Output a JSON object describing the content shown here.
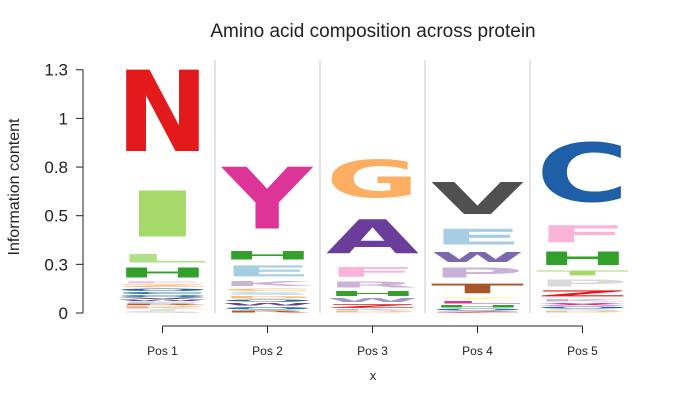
{
  "chart_data": {
    "type": "sequence-logo",
    "title": "Amino acid composition across protein",
    "xlabel": "x",
    "ylabel": "Information content",
    "ylim": [
      0,
      1.3
    ],
    "y_ticks": [
      {
        "value": 0,
        "label": "0"
      },
      {
        "value": 0.25,
        "label": "0.3"
      },
      {
        "value": 0.5,
        "label": "0.5"
      },
      {
        "value": 0.75,
        "label": "0.8"
      },
      {
        "value": 1,
        "label": "1"
      },
      {
        "value": 1.25,
        "label": "1.3"
      }
    ],
    "positions": [
      {
        "label": "Pos 1",
        "letters": [
          {
            "char": "S",
            "height": 0.01,
            "color": "#c9b2d6"
          },
          {
            "char": "T",
            "height": 0.01,
            "color": "#b2df8a"
          },
          {
            "char": "K",
            "height": 0.01,
            "color": "#cab2d6"
          },
          {
            "char": "D",
            "height": 0.01,
            "color": "#fdbf6f"
          },
          {
            "char": "R",
            "height": 0.01,
            "color": "#b15928"
          },
          {
            "char": "E",
            "height": 0.01,
            "color": "#a6cee3"
          },
          {
            "char": "W",
            "height": 0.01,
            "color": "#6a3d9a"
          },
          {
            "char": "V",
            "height": 0.01,
            "color": "#555555"
          },
          {
            "char": "Q",
            "height": 0.015,
            "color": "#1f78b4"
          },
          {
            "char": "C",
            "height": 0.015,
            "color": "#1f5fa8"
          },
          {
            "char": "O",
            "height": 0.02,
            "color": "#2166ac"
          },
          {
            "char": "Z",
            "height": 0.02,
            "color": "#fdae61"
          },
          {
            "char": "F",
            "height": 0.015,
            "color": "#fbb4d9"
          },
          {
            "char": "H",
            "height": 0.08,
            "color": "#33a02c"
          },
          {
            "char": "L",
            "height": 0.07,
            "color": "#b2df8a"
          },
          {
            "char": "I",
            "height": 0.38,
            "color": "#a6d96a"
          },
          {
            "char": "N",
            "height": 0.67,
            "color": "#e31a1c"
          }
        ]
      },
      {
        "label": "Pos 2",
        "letters": [
          {
            "char": "R",
            "height": 0.015,
            "color": "#b15928"
          },
          {
            "char": "O",
            "height": 0.02,
            "color": "#1f78b4"
          },
          {
            "char": "W",
            "height": 0.02,
            "color": "#6a3d9a"
          },
          {
            "char": "Q",
            "height": 0.015,
            "color": "#2166ac"
          },
          {
            "char": "D",
            "height": 0.02,
            "color": "#fdbf6f"
          },
          {
            "char": "S",
            "height": 0.02,
            "color": "#a6cee3"
          },
          {
            "char": "C",
            "height": 0.02,
            "color": "#fdbf6f"
          },
          {
            "char": "K",
            "height": 0.04,
            "color": "#cab2d6"
          },
          {
            "char": "E",
            "height": 0.09,
            "color": "#a6cee3"
          },
          {
            "char": "H",
            "height": 0.07,
            "color": "#33a02c"
          },
          {
            "char": "Y",
            "height": 0.51,
            "color": "#dd3497"
          }
        ]
      },
      {
        "label": "Pos 3",
        "letters": [
          {
            "char": "D",
            "height": 0.01,
            "color": "#fdbf6f"
          },
          {
            "char": "K",
            "height": 0.01,
            "color": "#cab2d6"
          },
          {
            "char": "Z",
            "height": 0.03,
            "color": "#e31a1c"
          },
          {
            "char": "W",
            "height": 0.03,
            "color": "#9e9ac8"
          },
          {
            "char": "H",
            "height": 0.04,
            "color": "#33a02c"
          },
          {
            "char": "R",
            "height": 0.05,
            "color": "#c9b2d6"
          },
          {
            "char": "F",
            "height": 0.08,
            "color": "#fbb4d9"
          },
          {
            "char": "A",
            "height": 0.28,
            "color": "#6a3d9a"
          },
          {
            "char": "G",
            "height": 0.31,
            "color": "#fdae61"
          }
        ]
      },
      {
        "label": "Pos 4",
        "letters": [
          {
            "char": "Z",
            "height": 0.01,
            "color": "#e31a1c"
          },
          {
            "char": "O",
            "height": 0.015,
            "color": "#1f78b4"
          },
          {
            "char": "H",
            "height": 0.02,
            "color": "#33a02c"
          },
          {
            "char": "L",
            "height": 0.02,
            "color": "#dd3497"
          },
          {
            "char": "Y",
            "height": 0.02,
            "color": "#fff59d"
          },
          {
            "char": "T",
            "height": 0.08,
            "color": "#a65628"
          },
          {
            "char": "P",
            "height": 0.08,
            "color": "#c9b2d6"
          },
          {
            "char": "W",
            "height": 0.08,
            "color": "#7b68b0"
          },
          {
            "char": "E",
            "height": 0.13,
            "color": "#a6cee3"
          },
          {
            "char": "V",
            "height": 0.26,
            "color": "#505050"
          }
        ]
      },
      {
        "label": "Pos 5",
        "letters": [
          {
            "char": "D",
            "height": 0.01,
            "color": "#fdbf6f"
          },
          {
            "char": "S",
            "height": 0.01,
            "color": "#a6cee3"
          },
          {
            "char": "O",
            "height": 0.015,
            "color": "#2166ac"
          },
          {
            "char": "X",
            "height": 0.02,
            "color": "#e7298a"
          },
          {
            "char": "K",
            "height": 0.02,
            "color": "#cab2d6"
          },
          {
            "char": "Z",
            "height": 0.05,
            "color": "#e31a1c"
          },
          {
            "char": "P",
            "height": 0.06,
            "color": "#d9d9d9"
          },
          {
            "char": "T",
            "height": 0.04,
            "color": "#a6d96a"
          },
          {
            "char": "H",
            "height": 0.11,
            "color": "#33a02c"
          },
          {
            "char": "F",
            "height": 0.14,
            "color": "#fbb4d9"
          },
          {
            "char": "C",
            "height": 0.48,
            "color": "#1f5fa8"
          }
        ]
      }
    ]
  }
}
